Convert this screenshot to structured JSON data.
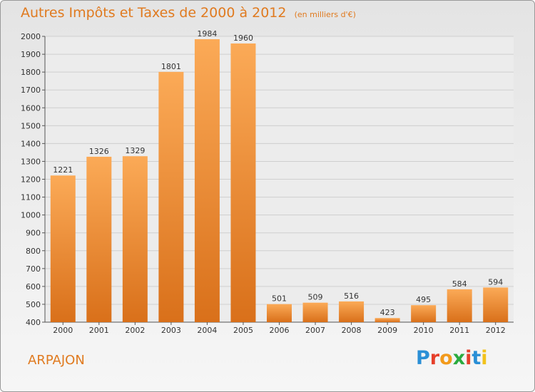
{
  "header": {
    "title": "Autres Impôts et Taxes de 2000 à 2012",
    "subtitle": "(en milliers d'€)"
  },
  "footer": {
    "city": "ARPAJON",
    "logo_text": "Proxiti",
    "logo_icon": "proxiti-logo-icon"
  },
  "colors": {
    "bar_top": "#fbaa57",
    "bar_bottom": "#d9701a",
    "text_accent": "#e07a1f",
    "grid": "#cfcfcf"
  },
  "chart_data": {
    "type": "bar",
    "categories": [
      "2000",
      "2001",
      "2002",
      "2003",
      "2004",
      "2005",
      "2006",
      "2007",
      "2008",
      "2009",
      "2010",
      "2011",
      "2012"
    ],
    "values": [
      1221,
      1326,
      1329,
      1801,
      1984,
      1960,
      501,
      509,
      516,
      423,
      495,
      584,
      594
    ],
    "data_labels": [
      "1221",
      "1326",
      "1329",
      "1801",
      "1984",
      "1960",
      "501",
      "509",
      "516",
      "423",
      "495",
      "584",
      "594"
    ],
    "title": "Autres Impôts et Taxes de 2000 à 2012",
    "subtitle": "(en milliers d'€)",
    "xlabel": "",
    "ylabel": "",
    "ylim": [
      400,
      2000
    ],
    "yticks": [
      "400",
      "500",
      "600",
      "700",
      "800",
      "900",
      "1000",
      "1100",
      "1200",
      "1300",
      "1400",
      "1500",
      "1600",
      "1700",
      "1800",
      "1900",
      "2000"
    ],
    "grid": true,
    "legend": "none"
  }
}
